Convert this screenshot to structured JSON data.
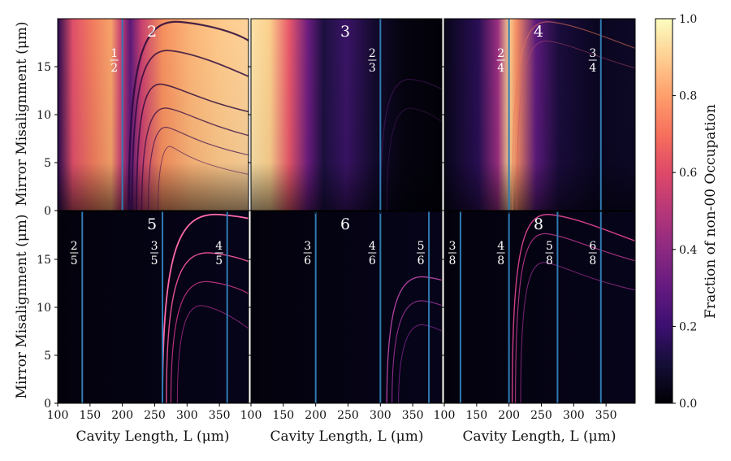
{
  "chart_data": {
    "type": "heatmap",
    "x_label": "Cavity Length, L (μm)",
    "y_label": "Mirror Misalignment (μm)",
    "xlim": [
      100,
      395
    ],
    "ylim": [
      0,
      20
    ],
    "x_ticks": [
      100,
      150,
      200,
      250,
      300,
      350
    ],
    "y_ticks": [
      0,
      5,
      10,
      15
    ],
    "colorbar": {
      "label": "Fraction of non-00 Occupation",
      "min": 0.0,
      "max": 1.0,
      "ticks": [
        "0.0",
        "0.2",
        "0.4",
        "0.6",
        "0.8",
        "1.0"
      ],
      "colormap": "magma"
    },
    "panels": [
      {
        "title": "2",
        "row": 0,
        "col": 0,
        "dominant_region": "bright",
        "markers": [
          {
            "L": 200,
            "num": "1",
            "den": "2"
          }
        ]
      },
      {
        "title": "3",
        "row": 0,
        "col": 1,
        "dominant_region": "bright-left",
        "markers": [
          {
            "L": 300,
            "num": "2",
            "den": "3"
          }
        ]
      },
      {
        "title": "4",
        "row": 0,
        "col": 2,
        "dominant_region": "band-200",
        "markers": [
          {
            "L": 200,
            "num": "2",
            "den": "4"
          },
          {
            "L": 342,
            "num": "3",
            "den": "4"
          }
        ]
      },
      {
        "title": "5",
        "row": 1,
        "col": 0,
        "dominant_region": "dark",
        "markers": [
          {
            "L": 138,
            "num": "2",
            "den": "5"
          },
          {
            "L": 262,
            "num": "3",
            "den": "5"
          },
          {
            "L": 362,
            "num": "4",
            "den": "5"
          }
        ]
      },
      {
        "title": "6",
        "row": 1,
        "col": 1,
        "dominant_region": "dark",
        "markers": [
          {
            "L": 200,
            "num": "3",
            "den": "6"
          },
          {
            "L": 300,
            "num": "4",
            "den": "6"
          },
          {
            "L": 375,
            "num": "5",
            "den": "6"
          }
        ]
      },
      {
        "title": "8",
        "row": 1,
        "col": 2,
        "dominant_region": "dark",
        "markers": [
          {
            "L": 125,
            "num": "3",
            "den": "8"
          },
          {
            "L": 200,
            "num": "4",
            "den": "8"
          },
          {
            "L": 275,
            "num": "5",
            "den": "8"
          },
          {
            "L": 342,
            "num": "6",
            "den": "8"
          }
        ]
      }
    ]
  },
  "colors": {
    "marker_line": "#2f7bb3",
    "label_text": "#ffffff",
    "axis_text": "#111111"
  }
}
